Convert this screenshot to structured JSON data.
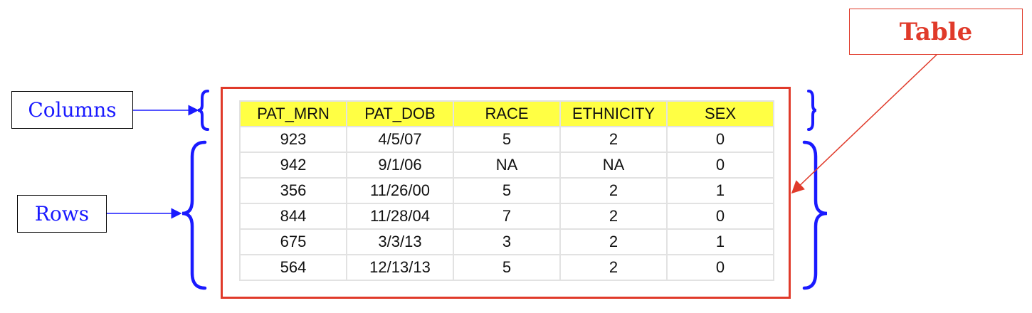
{
  "labels": {
    "columns": "Columns",
    "rows": "Rows",
    "table": "Table"
  },
  "table": {
    "headers": [
      "PAT_MRN",
      "PAT_DOB",
      "RACE",
      "ETHNICITY",
      "SEX"
    ],
    "rows": [
      [
        "923",
        "4/5/07",
        "5",
        "2",
        "0"
      ],
      [
        "942",
        "9/1/06",
        "NA",
        "NA",
        "0"
      ],
      [
        "356",
        "11/26/00",
        "5",
        "2",
        "1"
      ],
      [
        "844",
        "11/28/04",
        "7",
        "2",
        "0"
      ],
      [
        "675",
        "3/3/13",
        "3",
        "2",
        "1"
      ],
      [
        "564",
        "12/13/13",
        "5",
        "2",
        "0"
      ]
    ]
  },
  "colors": {
    "label_blue": "#1a1aff",
    "table_red": "#e03a2a",
    "header_yellow": "#ffff44"
  }
}
